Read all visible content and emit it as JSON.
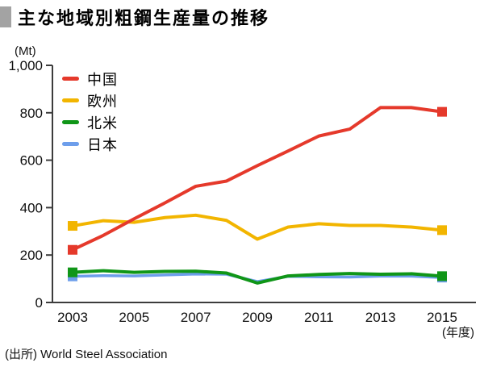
{
  "header": {
    "title": "主な地域別粗鋼生産量の推移"
  },
  "source": "(出所) World Steel Association",
  "chart_data": {
    "type": "line",
    "title": "主な地域別粗鋼生産量の推移",
    "unit_label": "(Mt)",
    "x_axis_label": "(年度)",
    "x": [
      2003,
      2004,
      2005,
      2006,
      2007,
      2008,
      2009,
      2010,
      2011,
      2012,
      2013,
      2014,
      2015
    ],
    "x_tick_labels": [
      "2003",
      "2005",
      "2007",
      "2009",
      "2011",
      "2013",
      "2015"
    ],
    "x_ticks": [
      2003,
      2005,
      2007,
      2009,
      2011,
      2013,
      2015
    ],
    "ylim": [
      0,
      1000
    ],
    "y_ticks": [
      0,
      200,
      400,
      600,
      800,
      1000
    ],
    "y_tick_labels": [
      "0",
      "200",
      "400",
      "600",
      "800",
      "1,000"
    ],
    "grid": false,
    "legend_position": "top-left",
    "marker": "square-endpoints",
    "series": [
      {
        "key": "china",
        "name": "中国",
        "color": "#e5392b",
        "values": [
          222,
          283,
          353,
          420,
          490,
          512,
          577,
          639,
          702,
          731,
          822,
          822,
          804
        ]
      },
      {
        "key": "europe",
        "name": "欧州",
        "color": "#f2b500",
        "values": [
          323,
          345,
          338,
          358,
          368,
          346,
          267,
          318,
          332,
          325,
          325,
          318,
          305
        ]
      },
      {
        "key": "north-america",
        "name": "北米",
        "color": "#109618",
        "values": [
          127,
          134,
          127,
          131,
          132,
          124,
          82,
          112,
          118,
          122,
          119,
          121,
          111
        ]
      },
      {
        "key": "japan",
        "name": "日本",
        "color": "#6d9eeb",
        "values": [
          110,
          113,
          112,
          116,
          120,
          119,
          88,
          110,
          108,
          107,
          111,
          111,
          105
        ]
      }
    ]
  }
}
